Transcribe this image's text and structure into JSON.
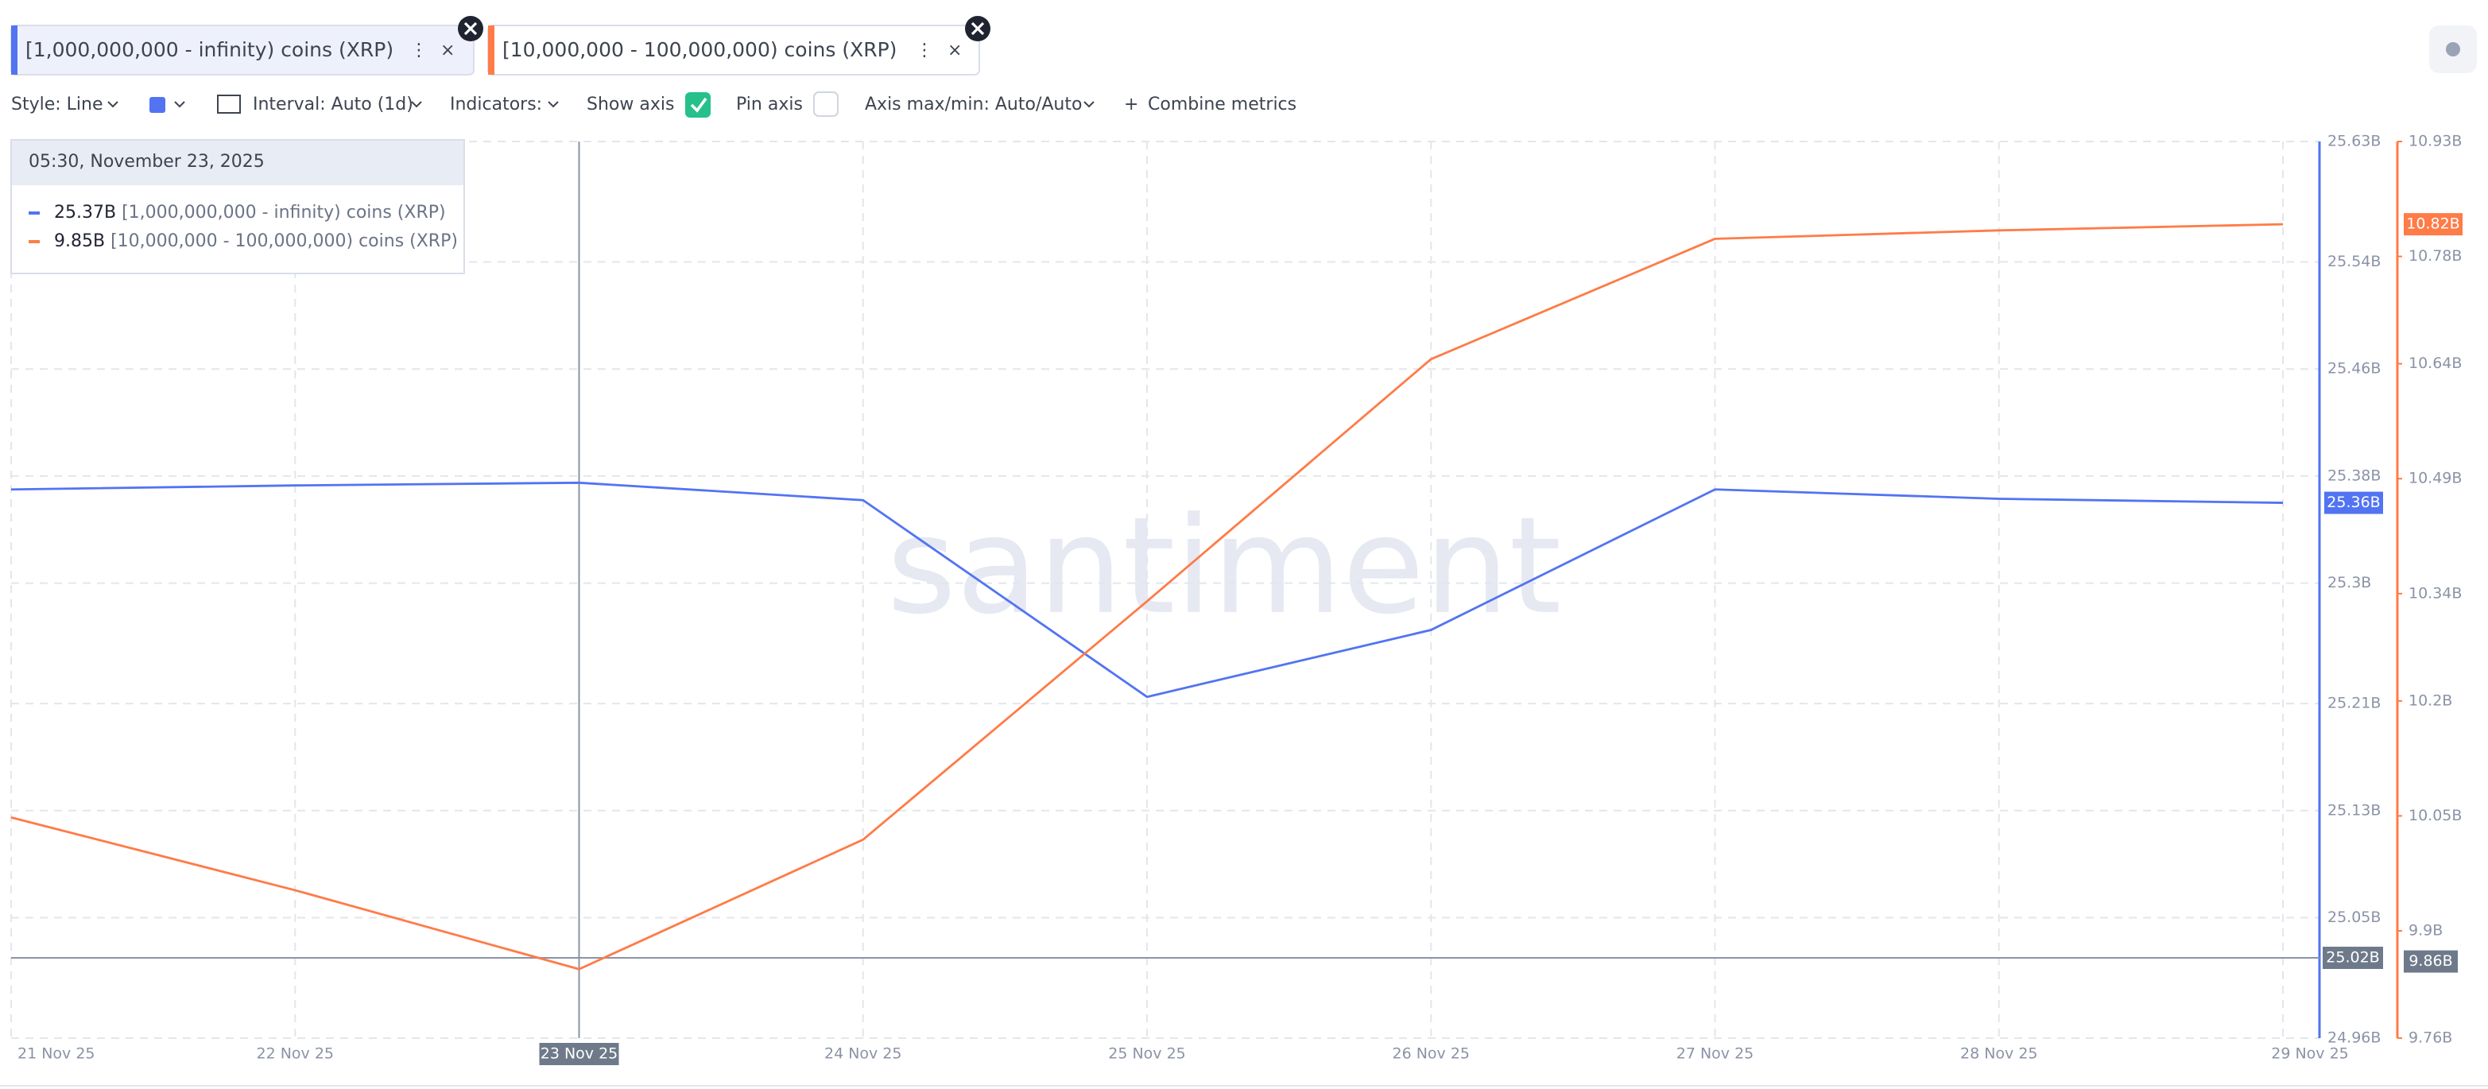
{
  "ui": {
    "toolbar": {
      "style": "Style: Line",
      "interval": "Interval: Auto (1d)",
      "indicators": "Indicators:",
      "show_axis": "Show axis",
      "pin_axis": "Pin axis",
      "axis_maxmin": "Axis max/min: Auto/Auto",
      "combine": "Combine metrics"
    },
    "tooltip": {
      "date": "05:30, November 23, 2025",
      "values": [
        "25.37B",
        "9.85B"
      ]
    },
    "watermark": "santiment"
  },
  "chart_data": {
    "type": "line",
    "categories": [
      "21 Nov 25",
      "22 Nov 25",
      "23 Nov 25",
      "24 Nov 25",
      "25 Nov 25",
      "26 Nov 25",
      "27 Nov 25",
      "28 Nov 25",
      "29 Nov 25"
    ],
    "series": [
      {
        "name": "[1,000,000,000 - infinity) coins (XRP)",
        "color": "#5274f2",
        "axis": "y",
        "last_label": "25.36B",
        "values": [
          25.37,
          25.373,
          25.375,
          25.362,
          25.215,
          25.265,
          25.37,
          25.363,
          25.36
        ]
      },
      {
        "name": "[10,000,000 - 100,000,000) coins (XRP)",
        "color": "#ff7b47",
        "axis": "y2",
        "last_label": "10.82B",
        "values": [
          10.048,
          9.953,
          9.85,
          10.019,
          10.33,
          10.646,
          10.803,
          10.814,
          10.822
        ]
      }
    ],
    "ylim": [
      24.96,
      25.63
    ],
    "yticks": [
      {
        "value": 24.96,
        "label": "24.96B"
      },
      {
        "value": 25.05,
        "label": "25.05B"
      },
      {
        "value": 25.13,
        "label": "25.13B"
      },
      {
        "value": 25.21,
        "label": "25.21B"
      },
      {
        "value": 25.3,
        "label": "25.3B"
      },
      {
        "value": 25.38,
        "label": "25.38B"
      },
      {
        "value": 25.46,
        "label": "25.46B"
      },
      {
        "value": 25.54,
        "label": "25.54B"
      },
      {
        "value": 25.63,
        "label": "25.63B"
      }
    ],
    "y2lim": [
      9.76,
      10.93
    ],
    "y2ticks": [
      {
        "value": 9.76,
        "label": "9.76B"
      },
      {
        "value": 9.9,
        "label": "9.9B"
      },
      {
        "value": 10.05,
        "label": "10.05B"
      },
      {
        "value": 10.2,
        "label": "10.2B"
      },
      {
        "value": 10.34,
        "label": "10.34B"
      },
      {
        "value": 10.49,
        "label": "10.49B"
      },
      {
        "value": 10.64,
        "label": "10.64B"
      },
      {
        "value": 10.78,
        "label": "10.78B"
      },
      {
        "value": 10.93,
        "label": "10.93B"
      }
    ],
    "grid": true,
    "crosshair": {
      "index": 2,
      "y": 25.02,
      "y_label": "25.02B",
      "y2": 9.86,
      "y2_label": "9.86B"
    }
  }
}
